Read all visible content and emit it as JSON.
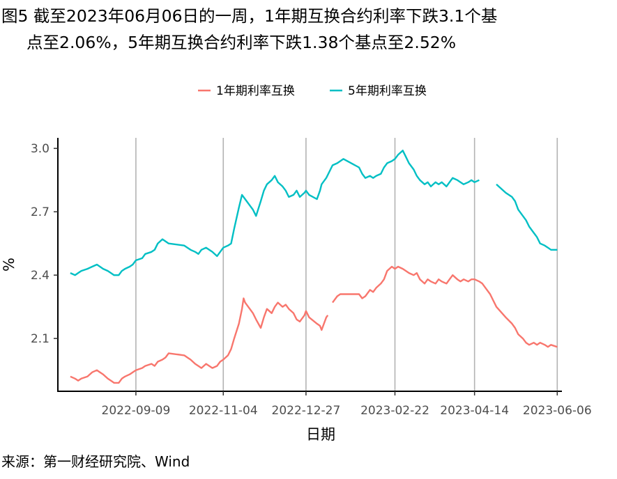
{
  "title_line1": "图5 截至2023年06月06日的一周，1年期互换合约利率下跌3.1个基",
  "title_line2": "点至2.06%，5年期互换合约利率下跌1.38个基点至2.52%",
  "source": "来源：第一财经研究院、Wind",
  "chart_data": {
    "type": "line",
    "xlabel": "日期",
    "ylabel": "%",
    "x_ticks": [
      "2022-09-09",
      "2022-11-04",
      "2022-12-27",
      "2023-02-22",
      "2023-04-14",
      "2023-06-06"
    ],
    "y_ticks": [
      "2.1",
      "2.4",
      "2.7",
      "3.0"
    ],
    "xlim": [
      "2022-07-21",
      "2023-06-09"
    ],
    "ylim": [
      1.85,
      3.05
    ],
    "grid": "vertical major lines",
    "legend_position": "top",
    "series": [
      {
        "name": "1年期利率互换",
        "color": "#F8766D",
        "gaps_after": [
          "2023-01-10"
        ],
        "points": [
          [
            "2022-07-29",
            1.92
          ],
          [
            "2022-08-01",
            1.91
          ],
          [
            "2022-08-03",
            1.9
          ],
          [
            "2022-08-05",
            1.91
          ],
          [
            "2022-08-09",
            1.92
          ],
          [
            "2022-08-12",
            1.94
          ],
          [
            "2022-08-15",
            1.95
          ],
          [
            "2022-08-17",
            1.94
          ],
          [
            "2022-08-19",
            1.93
          ],
          [
            "2022-08-22",
            1.91
          ],
          [
            "2022-08-24",
            1.9
          ],
          [
            "2022-08-26",
            1.89
          ],
          [
            "2022-08-29",
            1.89
          ],
          [
            "2022-08-31",
            1.91
          ],
          [
            "2022-09-02",
            1.92
          ],
          [
            "2022-09-05",
            1.93
          ],
          [
            "2022-09-07",
            1.94
          ],
          [
            "2022-09-09",
            1.95
          ],
          [
            "2022-09-13",
            1.96
          ],
          [
            "2022-09-15",
            1.97
          ],
          [
            "2022-09-19",
            1.98
          ],
          [
            "2022-09-21",
            1.97
          ],
          [
            "2022-09-23",
            1.99
          ],
          [
            "2022-09-26",
            2.0
          ],
          [
            "2022-09-28",
            2.01
          ],
          [
            "2022-09-30",
            2.03
          ],
          [
            "2022-10-10",
            2.02
          ],
          [
            "2022-10-12",
            2.01
          ],
          [
            "2022-10-14",
            2.0
          ],
          [
            "2022-10-17",
            1.98
          ],
          [
            "2022-10-19",
            1.97
          ],
          [
            "2022-10-21",
            1.96
          ],
          [
            "2022-10-24",
            1.98
          ],
          [
            "2022-10-26",
            1.97
          ],
          [
            "2022-10-28",
            1.96
          ],
          [
            "2022-10-31",
            1.97
          ],
          [
            "2022-11-02",
            1.99
          ],
          [
            "2022-11-04",
            2.0
          ],
          [
            "2022-11-07",
            2.02
          ],
          [
            "2022-11-09",
            2.05
          ],
          [
            "2022-11-11",
            2.1
          ],
          [
            "2022-11-14",
            2.17
          ],
          [
            "2022-11-16",
            2.24
          ],
          [
            "2022-11-17",
            2.29
          ],
          [
            "2022-11-18",
            2.27
          ],
          [
            "2022-11-21",
            2.24
          ],
          [
            "2022-11-23",
            2.22
          ],
          [
            "2022-11-25",
            2.19
          ],
          [
            "2022-11-28",
            2.15
          ],
          [
            "2022-11-30",
            2.2
          ],
          [
            "2022-12-02",
            2.24
          ],
          [
            "2022-12-05",
            2.22
          ],
          [
            "2022-12-07",
            2.25
          ],
          [
            "2022-12-09",
            2.27
          ],
          [
            "2022-12-12",
            2.25
          ],
          [
            "2022-12-14",
            2.26
          ],
          [
            "2022-12-16",
            2.24
          ],
          [
            "2022-12-19",
            2.22
          ],
          [
            "2022-12-21",
            2.19
          ],
          [
            "2022-12-23",
            2.18
          ],
          [
            "2022-12-26",
            2.21
          ],
          [
            "2022-12-27",
            2.23
          ],
          [
            "2022-12-29",
            2.2
          ],
          [
            "2023-01-03",
            2.17
          ],
          [
            "2023-01-05",
            2.16
          ],
          [
            "2023-01-06",
            2.14
          ],
          [
            "2023-01-09",
            2.2
          ],
          [
            "2023-01-10",
            2.21
          ],
          [
            "2023-01-13",
            2.27
          ],
          [
            "2023-01-16",
            2.3
          ],
          [
            "2023-01-18",
            2.31
          ],
          [
            "2023-01-30",
            2.31
          ],
          [
            "2023-02-01",
            2.29
          ],
          [
            "2023-02-03",
            2.3
          ],
          [
            "2023-02-06",
            2.33
          ],
          [
            "2023-02-08",
            2.32
          ],
          [
            "2023-02-10",
            2.34
          ],
          [
            "2023-02-13",
            2.36
          ],
          [
            "2023-02-15",
            2.38
          ],
          [
            "2023-02-17",
            2.42
          ],
          [
            "2023-02-20",
            2.44
          ],
          [
            "2023-02-22",
            2.43
          ],
          [
            "2023-02-24",
            2.44
          ],
          [
            "2023-02-27",
            2.43
          ],
          [
            "2023-03-01",
            2.42
          ],
          [
            "2023-03-03",
            2.41
          ],
          [
            "2023-03-06",
            2.4
          ],
          [
            "2023-03-08",
            2.41
          ],
          [
            "2023-03-10",
            2.38
          ],
          [
            "2023-03-13",
            2.36
          ],
          [
            "2023-03-15",
            2.38
          ],
          [
            "2023-03-17",
            2.37
          ],
          [
            "2023-03-20",
            2.36
          ],
          [
            "2023-03-22",
            2.38
          ],
          [
            "2023-03-24",
            2.37
          ],
          [
            "2023-03-27",
            2.36
          ],
          [
            "2023-03-29",
            2.38
          ],
          [
            "2023-03-31",
            2.4
          ],
          [
            "2023-04-03",
            2.38
          ],
          [
            "2023-04-05",
            2.37
          ],
          [
            "2023-04-07",
            2.38
          ],
          [
            "2023-04-10",
            2.37
          ],
          [
            "2023-04-12",
            2.38
          ],
          [
            "2023-04-14",
            2.38
          ],
          [
            "2023-04-17",
            2.37
          ],
          [
            "2023-04-19",
            2.36
          ],
          [
            "2023-04-21",
            2.34
          ],
          [
            "2023-04-24",
            2.31
          ],
          [
            "2023-04-26",
            2.28
          ],
          [
            "2023-04-28",
            2.25
          ],
          [
            "2023-05-04",
            2.2
          ],
          [
            "2023-05-08",
            2.17
          ],
          [
            "2023-05-10",
            2.15
          ],
          [
            "2023-05-12",
            2.12
          ],
          [
            "2023-05-15",
            2.1
          ],
          [
            "2023-05-17",
            2.08
          ],
          [
            "2023-05-19",
            2.07
          ],
          [
            "2023-05-22",
            2.08
          ],
          [
            "2023-05-24",
            2.07
          ],
          [
            "2023-05-26",
            2.08
          ],
          [
            "2023-05-29",
            2.07
          ],
          [
            "2023-05-31",
            2.06
          ],
          [
            "2023-06-02",
            2.07
          ],
          [
            "2023-06-06",
            2.06
          ]
        ]
      },
      {
        "name": "5年期利率互换",
        "color": "#00BFC4",
        "gaps_after": [
          "2023-04-17"
        ],
        "points": [
          [
            "2022-07-29",
            2.41
          ],
          [
            "2022-08-01",
            2.4
          ],
          [
            "2022-08-03",
            2.41
          ],
          [
            "2022-08-05",
            2.42
          ],
          [
            "2022-08-09",
            2.43
          ],
          [
            "2022-08-12",
            2.44
          ],
          [
            "2022-08-15",
            2.45
          ],
          [
            "2022-08-17",
            2.44
          ],
          [
            "2022-08-19",
            2.43
          ],
          [
            "2022-08-22",
            2.42
          ],
          [
            "2022-08-24",
            2.41
          ],
          [
            "2022-08-26",
            2.4
          ],
          [
            "2022-08-29",
            2.4
          ],
          [
            "2022-08-31",
            2.42
          ],
          [
            "2022-09-02",
            2.43
          ],
          [
            "2022-09-05",
            2.44
          ],
          [
            "2022-09-07",
            2.45
          ],
          [
            "2022-09-09",
            2.47
          ],
          [
            "2022-09-13",
            2.48
          ],
          [
            "2022-09-15",
            2.5
          ],
          [
            "2022-09-19",
            2.51
          ],
          [
            "2022-09-21",
            2.52
          ],
          [
            "2022-09-23",
            2.55
          ],
          [
            "2022-09-26",
            2.57
          ],
          [
            "2022-09-28",
            2.56
          ],
          [
            "2022-09-30",
            2.55
          ],
          [
            "2022-10-10",
            2.54
          ],
          [
            "2022-10-12",
            2.53
          ],
          [
            "2022-10-14",
            2.52
          ],
          [
            "2022-10-17",
            2.51
          ],
          [
            "2022-10-19",
            2.5
          ],
          [
            "2022-10-21",
            2.52
          ],
          [
            "2022-10-24",
            2.53
          ],
          [
            "2022-10-26",
            2.52
          ],
          [
            "2022-10-28",
            2.51
          ],
          [
            "2022-10-31",
            2.49
          ],
          [
            "2022-11-02",
            2.51
          ],
          [
            "2022-11-04",
            2.53
          ],
          [
            "2022-11-07",
            2.54
          ],
          [
            "2022-11-09",
            2.55
          ],
          [
            "2022-11-11",
            2.62
          ],
          [
            "2022-11-14",
            2.72
          ],
          [
            "2022-11-16",
            2.78
          ],
          [
            "2022-11-18",
            2.76
          ],
          [
            "2022-11-21",
            2.73
          ],
          [
            "2022-11-23",
            2.71
          ],
          [
            "2022-11-25",
            2.68
          ],
          [
            "2022-11-28",
            2.75
          ],
          [
            "2022-11-30",
            2.8
          ],
          [
            "2022-12-02",
            2.83
          ],
          [
            "2022-12-05",
            2.85
          ],
          [
            "2022-12-07",
            2.87
          ],
          [
            "2022-12-09",
            2.84
          ],
          [
            "2022-12-12",
            2.82
          ],
          [
            "2022-12-14",
            2.8
          ],
          [
            "2022-12-16",
            2.77
          ],
          [
            "2022-12-19",
            2.78
          ],
          [
            "2022-12-21",
            2.8
          ],
          [
            "2022-12-23",
            2.77
          ],
          [
            "2022-12-26",
            2.79
          ],
          [
            "2022-12-27",
            2.8
          ],
          [
            "2022-12-29",
            2.78
          ],
          [
            "2023-01-03",
            2.76
          ],
          [
            "2023-01-05",
            2.8
          ],
          [
            "2023-01-06",
            2.83
          ],
          [
            "2023-01-09",
            2.86
          ],
          [
            "2023-01-11",
            2.89
          ],
          [
            "2023-01-13",
            2.92
          ],
          [
            "2023-01-16",
            2.93
          ],
          [
            "2023-01-18",
            2.94
          ],
          [
            "2023-01-20",
            2.95
          ],
          [
            "2023-01-30",
            2.91
          ],
          [
            "2023-02-01",
            2.88
          ],
          [
            "2023-02-03",
            2.86
          ],
          [
            "2023-02-06",
            2.87
          ],
          [
            "2023-02-08",
            2.86
          ],
          [
            "2023-02-10",
            2.87
          ],
          [
            "2023-02-13",
            2.88
          ],
          [
            "2023-02-15",
            2.91
          ],
          [
            "2023-02-17",
            2.93
          ],
          [
            "2023-02-20",
            2.94
          ],
          [
            "2023-02-22",
            2.95
          ],
          [
            "2023-02-24",
            2.97
          ],
          [
            "2023-02-27",
            2.99
          ],
          [
            "2023-03-01",
            2.96
          ],
          [
            "2023-03-03",
            2.93
          ],
          [
            "2023-03-06",
            2.9
          ],
          [
            "2023-03-08",
            2.87
          ],
          [
            "2023-03-10",
            2.85
          ],
          [
            "2023-03-13",
            2.83
          ],
          [
            "2023-03-15",
            2.84
          ],
          [
            "2023-03-17",
            2.82
          ],
          [
            "2023-03-20",
            2.84
          ],
          [
            "2023-03-22",
            2.83
          ],
          [
            "2023-03-24",
            2.84
          ],
          [
            "2023-03-27",
            2.82
          ],
          [
            "2023-03-29",
            2.84
          ],
          [
            "2023-03-31",
            2.86
          ],
          [
            "2023-04-03",
            2.85
          ],
          [
            "2023-04-05",
            2.84
          ],
          [
            "2023-04-07",
            2.83
          ],
          [
            "2023-04-10",
            2.84
          ],
          [
            "2023-04-12",
            2.85
          ],
          [
            "2023-04-14",
            2.84
          ],
          [
            "2023-04-17",
            2.85
          ],
          [
            "2023-04-28",
            2.83
          ],
          [
            "2023-05-04",
            2.79
          ],
          [
            "2023-05-08",
            2.77
          ],
          [
            "2023-05-10",
            2.75
          ],
          [
            "2023-05-12",
            2.71
          ],
          [
            "2023-05-15",
            2.68
          ],
          [
            "2023-05-17",
            2.66
          ],
          [
            "2023-05-19",
            2.63
          ],
          [
            "2023-05-22",
            2.6
          ],
          [
            "2023-05-24",
            2.58
          ],
          [
            "2023-05-26",
            2.55
          ],
          [
            "2023-05-29",
            2.54
          ],
          [
            "2023-05-31",
            2.53
          ],
          [
            "2023-06-02",
            2.52
          ],
          [
            "2023-06-06",
            2.52
          ]
        ]
      }
    ]
  }
}
